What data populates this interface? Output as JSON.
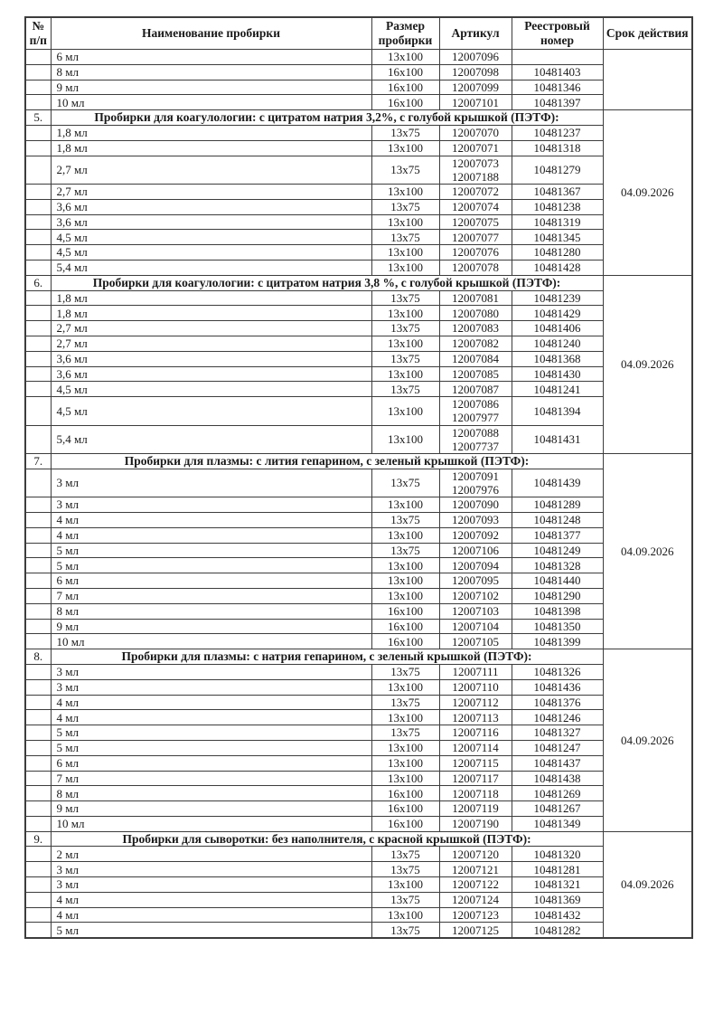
{
  "table": {
    "header": {
      "num": "№ п/п",
      "name": "Наименование пробирки",
      "size": "Размер пробирки",
      "article": "Артикул",
      "registry": "Реестровый номер",
      "validity": "Срок действия"
    },
    "sections": [
      {
        "num": "",
        "title": null,
        "validity": "",
        "rows": [
          [
            "6 мл",
            "13x100",
            "12007096",
            ""
          ],
          [
            "8 мл",
            "16x100",
            "12007098",
            "10481403"
          ],
          [
            "9 мл",
            "16x100",
            "12007099",
            "10481346"
          ],
          [
            "10 мл",
            "16x100",
            "12007101",
            "10481397"
          ]
        ]
      },
      {
        "num": "5.",
        "title": "Пробирки для коагулологии: с цитратом натрия 3,2%, с голубой крышкой (ПЭТФ):",
        "validity": "04.09.2026",
        "rows": [
          [
            "1,8 мл",
            "13x75",
            "12007070",
            "10481237"
          ],
          [
            "1,8 мл",
            "13x100",
            "12007071",
            "10481318"
          ],
          [
            "2,7 мл",
            "13x75",
            [
              "12007073",
              "12007188"
            ],
            "10481279"
          ],
          [
            "2,7 мл",
            "13x100",
            "12007072",
            "10481367"
          ],
          [
            "3,6 мл",
            "13x75",
            "12007074",
            "10481238"
          ],
          [
            "3,6 мл",
            "13x100",
            "12007075",
            "10481319"
          ],
          [
            "4,5 мл",
            "13x75",
            "12007077",
            "10481345"
          ],
          [
            "4,5 мл",
            "13x100",
            "12007076",
            "10481280"
          ],
          [
            "5,4 мл",
            "13x100",
            "12007078",
            "10481428"
          ]
        ]
      },
      {
        "num": "6.",
        "title": "Пробирки для коагулологии: с цитратом натрия 3,8 %, с голубой крышкой (ПЭТФ):",
        "validity": "04.09.2026",
        "rows": [
          [
            "1,8 мл",
            "13x75",
            "12007081",
            "10481239"
          ],
          [
            "1,8 мл",
            "13x100",
            "12007080",
            "10481429"
          ],
          [
            "2,7 мл",
            "13x75",
            "12007083",
            "10481406"
          ],
          [
            "2,7 мл",
            "13x100",
            "12007082",
            "10481240"
          ],
          [
            "3,6 мл",
            "13x75",
            "12007084",
            "10481368"
          ],
          [
            "3,6 мл",
            "13x100",
            "12007085",
            "10481430"
          ],
          [
            "4,5 мл",
            "13x75",
            "12007087",
            "10481241"
          ],
          [
            "4,5 мл",
            "13x100",
            [
              "12007086",
              "12007977"
            ],
            "10481394"
          ],
          [
            "5,4 мл",
            "13x100",
            [
              "12007088",
              "12007737"
            ],
            "10481431"
          ]
        ]
      },
      {
        "num": "7.",
        "title": "Пробирки для плазмы: с лития гепарином, с зеленый крышкой (ПЭТФ):",
        "validity": "04.09.2026",
        "rows": [
          [
            "3 мл",
            "13x75",
            [
              "12007091",
              "12007976"
            ],
            "10481439"
          ],
          [
            "3 мл",
            "13x100",
            "12007090",
            "10481289"
          ],
          [
            "4 мл",
            "13x75",
            "12007093",
            "10481248"
          ],
          [
            "4 мл",
            "13x100",
            "12007092",
            "10481377"
          ],
          [
            "5 мл",
            "13x75",
            "12007106",
            "10481249"
          ],
          [
            "5 мл",
            "13x100",
            "12007094",
            "10481328"
          ],
          [
            "6 мл",
            "13x100",
            "12007095",
            "10481440"
          ],
          [
            "7 мл",
            "13x100",
            "12007102",
            "10481290"
          ],
          [
            "8 мл",
            "16x100",
            "12007103",
            "10481398"
          ],
          [
            "9 мл",
            "16x100",
            "12007104",
            "10481350"
          ],
          [
            "10 мл",
            "16x100",
            "12007105",
            "10481399"
          ]
        ]
      },
      {
        "num": "8.",
        "title": "Пробирки для плазмы: с натрия гепарином, с зеленый крышкой (ПЭТФ):",
        "validity": "04.09.2026",
        "rows": [
          [
            "3 мл",
            "13x75",
            "12007111",
            "10481326"
          ],
          [
            "3 мл",
            "13x100",
            "12007110",
            "10481436"
          ],
          [
            "4 мл",
            "13x75",
            "12007112",
            "10481376"
          ],
          [
            "4 мл",
            "13x100",
            "12007113",
            "10481246"
          ],
          [
            "5 мл",
            "13x75",
            "12007116",
            "10481327"
          ],
          [
            "5 мл",
            "13x100",
            "12007114",
            "10481247"
          ],
          [
            "6 мл",
            "13x100",
            "12007115",
            "10481437"
          ],
          [
            "7 мл",
            "13x100",
            "12007117",
            "10481438"
          ],
          [
            "8 мл",
            "16x100",
            "12007118",
            "10481269"
          ],
          [
            "9 мл",
            "16x100",
            "12007119",
            "10481267"
          ],
          [
            "10 мл",
            "16x100",
            "12007190",
            "10481349"
          ]
        ]
      },
      {
        "num": "9.",
        "title": "Пробирки для сыворотки: без наполнителя, с красной крышкой (ПЭТФ):",
        "validity": "04.09.2026",
        "rows": [
          [
            "2 мл",
            "13x75",
            "12007120",
            "10481320"
          ],
          [
            "3 мл",
            "13x75",
            "12007121",
            "10481281"
          ],
          [
            "3 мл",
            "13x100",
            "12007122",
            "10481321"
          ],
          [
            "4 мл",
            "13x75",
            "12007124",
            "10481369"
          ],
          [
            "4 мл",
            "13x100",
            "12007123",
            "10481432"
          ],
          [
            "5 мл",
            "13x75",
            "12007125",
            "10481282"
          ]
        ]
      }
    ]
  },
  "colors": {
    "text": "#1a1a1a",
    "border": "#3d3d3d",
    "background": "#ffffff"
  }
}
